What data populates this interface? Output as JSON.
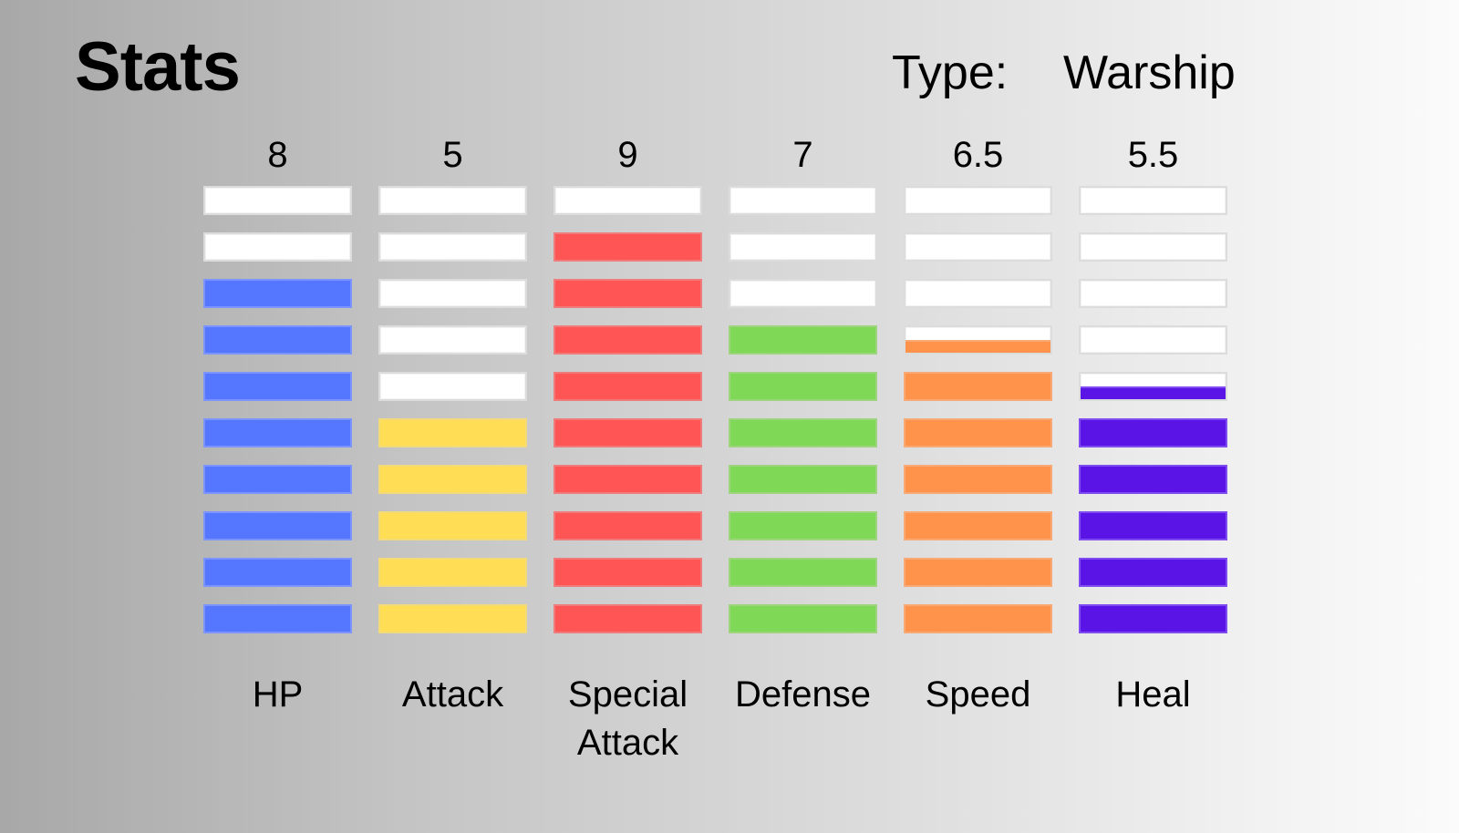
{
  "title": "Stats",
  "type_label": "Type:",
  "type_value": "Warship",
  "chart_data": {
    "type": "bar",
    "max": 10,
    "categories": [
      "HP",
      "Attack",
      "Special Attack",
      "Defense",
      "Speed",
      "Heal"
    ],
    "label_lines": [
      [
        "HP"
      ],
      [
        "Attack"
      ],
      [
        "Special",
        "Attack"
      ],
      [
        "Defense"
      ],
      [
        "Speed"
      ],
      [
        "Heal"
      ]
    ],
    "values": [
      8,
      5,
      9,
      7,
      6.5,
      5.5
    ],
    "value_labels": [
      "8",
      "5",
      "9",
      "7",
      "6.5",
      "5.5"
    ],
    "colors": [
      "#5577ff",
      "#ffdd55",
      "#ff5555",
      "#80d857",
      "#ff934c",
      "#5b14e6"
    ],
    "border_colors": [
      "#7b94ff",
      "#f2d97a",
      "#f07b7b",
      "#9fd47e",
      "#f7aa76",
      "#7e4cf0"
    ]
  }
}
